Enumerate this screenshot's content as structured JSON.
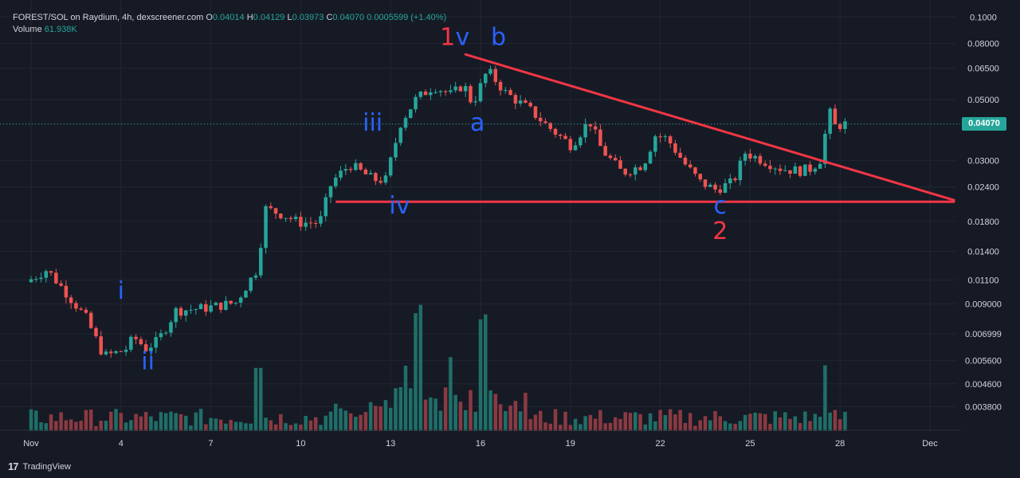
{
  "header": {
    "symbol_line": "FOREST/SOL on Raydium, 4h, dexscreener.com",
    "o_label": "O",
    "o_value": "0.04014",
    "h_label": "H",
    "h_value": "0.04129",
    "l_label": "L",
    "l_value": "0.03973",
    "c_label": "C",
    "c_value": "0.04070",
    "change": "0.0005599 (+1.40%)",
    "volume_label": "Volume",
    "volume_value": "61.938K"
  },
  "current_price": "0.04070",
  "brand": "TradingView",
  "colors": {
    "background": "#161a25",
    "up": "#26a69a",
    "down": "#ef5350",
    "volume_up": "#1f6f68",
    "volume_down": "#8b3a42",
    "trendline": "#f23645",
    "wave_blue": "#2962ff",
    "wave_red": "#f23645"
  },
  "chart_data": {
    "type": "candlestick",
    "scale": "log",
    "y_ticks": [
      "0.1000",
      "0.08000",
      "0.06500",
      "0.05000",
      "0.04070",
      "0.03000",
      "0.02400",
      "0.01800",
      "0.01400",
      "0.01100",
      "0.009000",
      "0.006999",
      "0.005600",
      "0.004600",
      "0.003800"
    ],
    "x_ticks": [
      "Nov",
      "4",
      "7",
      "10",
      "13",
      "16",
      "19",
      "22",
      "25",
      "28",
      "Dec"
    ],
    "x_tick_days": [
      1,
      4,
      7,
      10,
      13,
      16,
      19,
      22,
      25,
      28,
      31
    ],
    "ylim": [
      0.0034,
      0.105
    ],
    "anchors": [
      [
        1.0,
        0.0108
      ],
      [
        1.7,
        0.012
      ],
      [
        2.3,
        0.01
      ],
      [
        3.0,
        0.008
      ],
      [
        3.6,
        0.0058
      ],
      [
        4.3,
        0.0061
      ],
      [
        4.6,
        0.0068
      ],
      [
        5.0,
        0.0062
      ],
      [
        5.4,
        0.0066
      ],
      [
        6.0,
        0.0085
      ],
      [
        7.0,
        0.0087
      ],
      [
        8.0,
        0.0091
      ],
      [
        8.7,
        0.012
      ],
      [
        9.0,
        0.02
      ],
      [
        9.6,
        0.019
      ],
      [
        10.1,
        0.0178
      ],
      [
        10.8,
        0.0178
      ],
      [
        11.2,
        0.025
      ],
      [
        11.8,
        0.029
      ],
      [
        12.6,
        0.0255
      ],
      [
        13.0,
        0.0255
      ],
      [
        13.5,
        0.041
      ],
      [
        14.0,
        0.05
      ],
      [
        14.6,
        0.056
      ],
      [
        15.2,
        0.052
      ],
      [
        15.6,
        0.057
      ],
      [
        15.9,
        0.048
      ],
      [
        16.4,
        0.064
      ],
      [
        17.0,
        0.053
      ],
      [
        17.8,
        0.046
      ],
      [
        18.4,
        0.04
      ],
      [
        19.2,
        0.034
      ],
      [
        19.8,
        0.042
      ],
      [
        20.2,
        0.033
      ],
      [
        20.9,
        0.027
      ],
      [
        21.6,
        0.029
      ],
      [
        22.0,
        0.037
      ],
      [
        22.4,
        0.036
      ],
      [
        23.0,
        0.029
      ],
      [
        23.5,
        0.025
      ],
      [
        24.0,
        0.0235
      ],
      [
        24.6,
        0.025
      ],
      [
        25.0,
        0.032
      ],
      [
        25.6,
        0.03
      ],
      [
        26.2,
        0.028
      ],
      [
        26.8,
        0.0275
      ],
      [
        27.2,
        0.028
      ],
      [
        27.6,
        0.031
      ],
      [
        27.75,
        0.047
      ],
      [
        28.0,
        0.04
      ],
      [
        28.3,
        0.0407
      ]
    ],
    "volume_spikes": [
      [
        8.6,
        48
      ],
      [
        13.9,
        78
      ],
      [
        16.1,
        75
      ],
      [
        27.5,
        50
      ],
      [
        13.5,
        40
      ],
      [
        15.0,
        42
      ]
    ],
    "trendlines": [
      {
        "from": [
          15.5,
          0.073
        ],
        "to": [
          31.8,
          0.0215
        ]
      },
      {
        "from": [
          11.2,
          0.0212
        ],
        "to": [
          31.8,
          0.0212
        ]
      }
    ],
    "wave_labels": [
      {
        "text": "i",
        "day": 4.0,
        "price": 0.0094,
        "color": "blue"
      },
      {
        "text": "ii",
        "day": 4.9,
        "price": 0.0052,
        "color": "blue"
      },
      {
        "text": "iii",
        "day": 12.4,
        "price": 0.0385,
        "color": "blue"
      },
      {
        "text": "iv",
        "day": 13.3,
        "price": 0.0192,
        "color": "blue"
      },
      {
        "text": "1",
        "day": 14.9,
        "price": 0.079,
        "color": "red"
      },
      {
        "text": "v",
        "day": 15.4,
        "price": 0.079,
        "color": "blue"
      },
      {
        "text": "b",
        "day": 16.6,
        "price": 0.079,
        "color": "blue"
      },
      {
        "text": "a",
        "day": 15.9,
        "price": 0.0385,
        "color": "blue"
      },
      {
        "text": "c",
        "day": 24.0,
        "price": 0.0192,
        "color": "blue"
      },
      {
        "text": "2",
        "day": 24.0,
        "price": 0.0155,
        "color": "red"
      }
    ]
  }
}
